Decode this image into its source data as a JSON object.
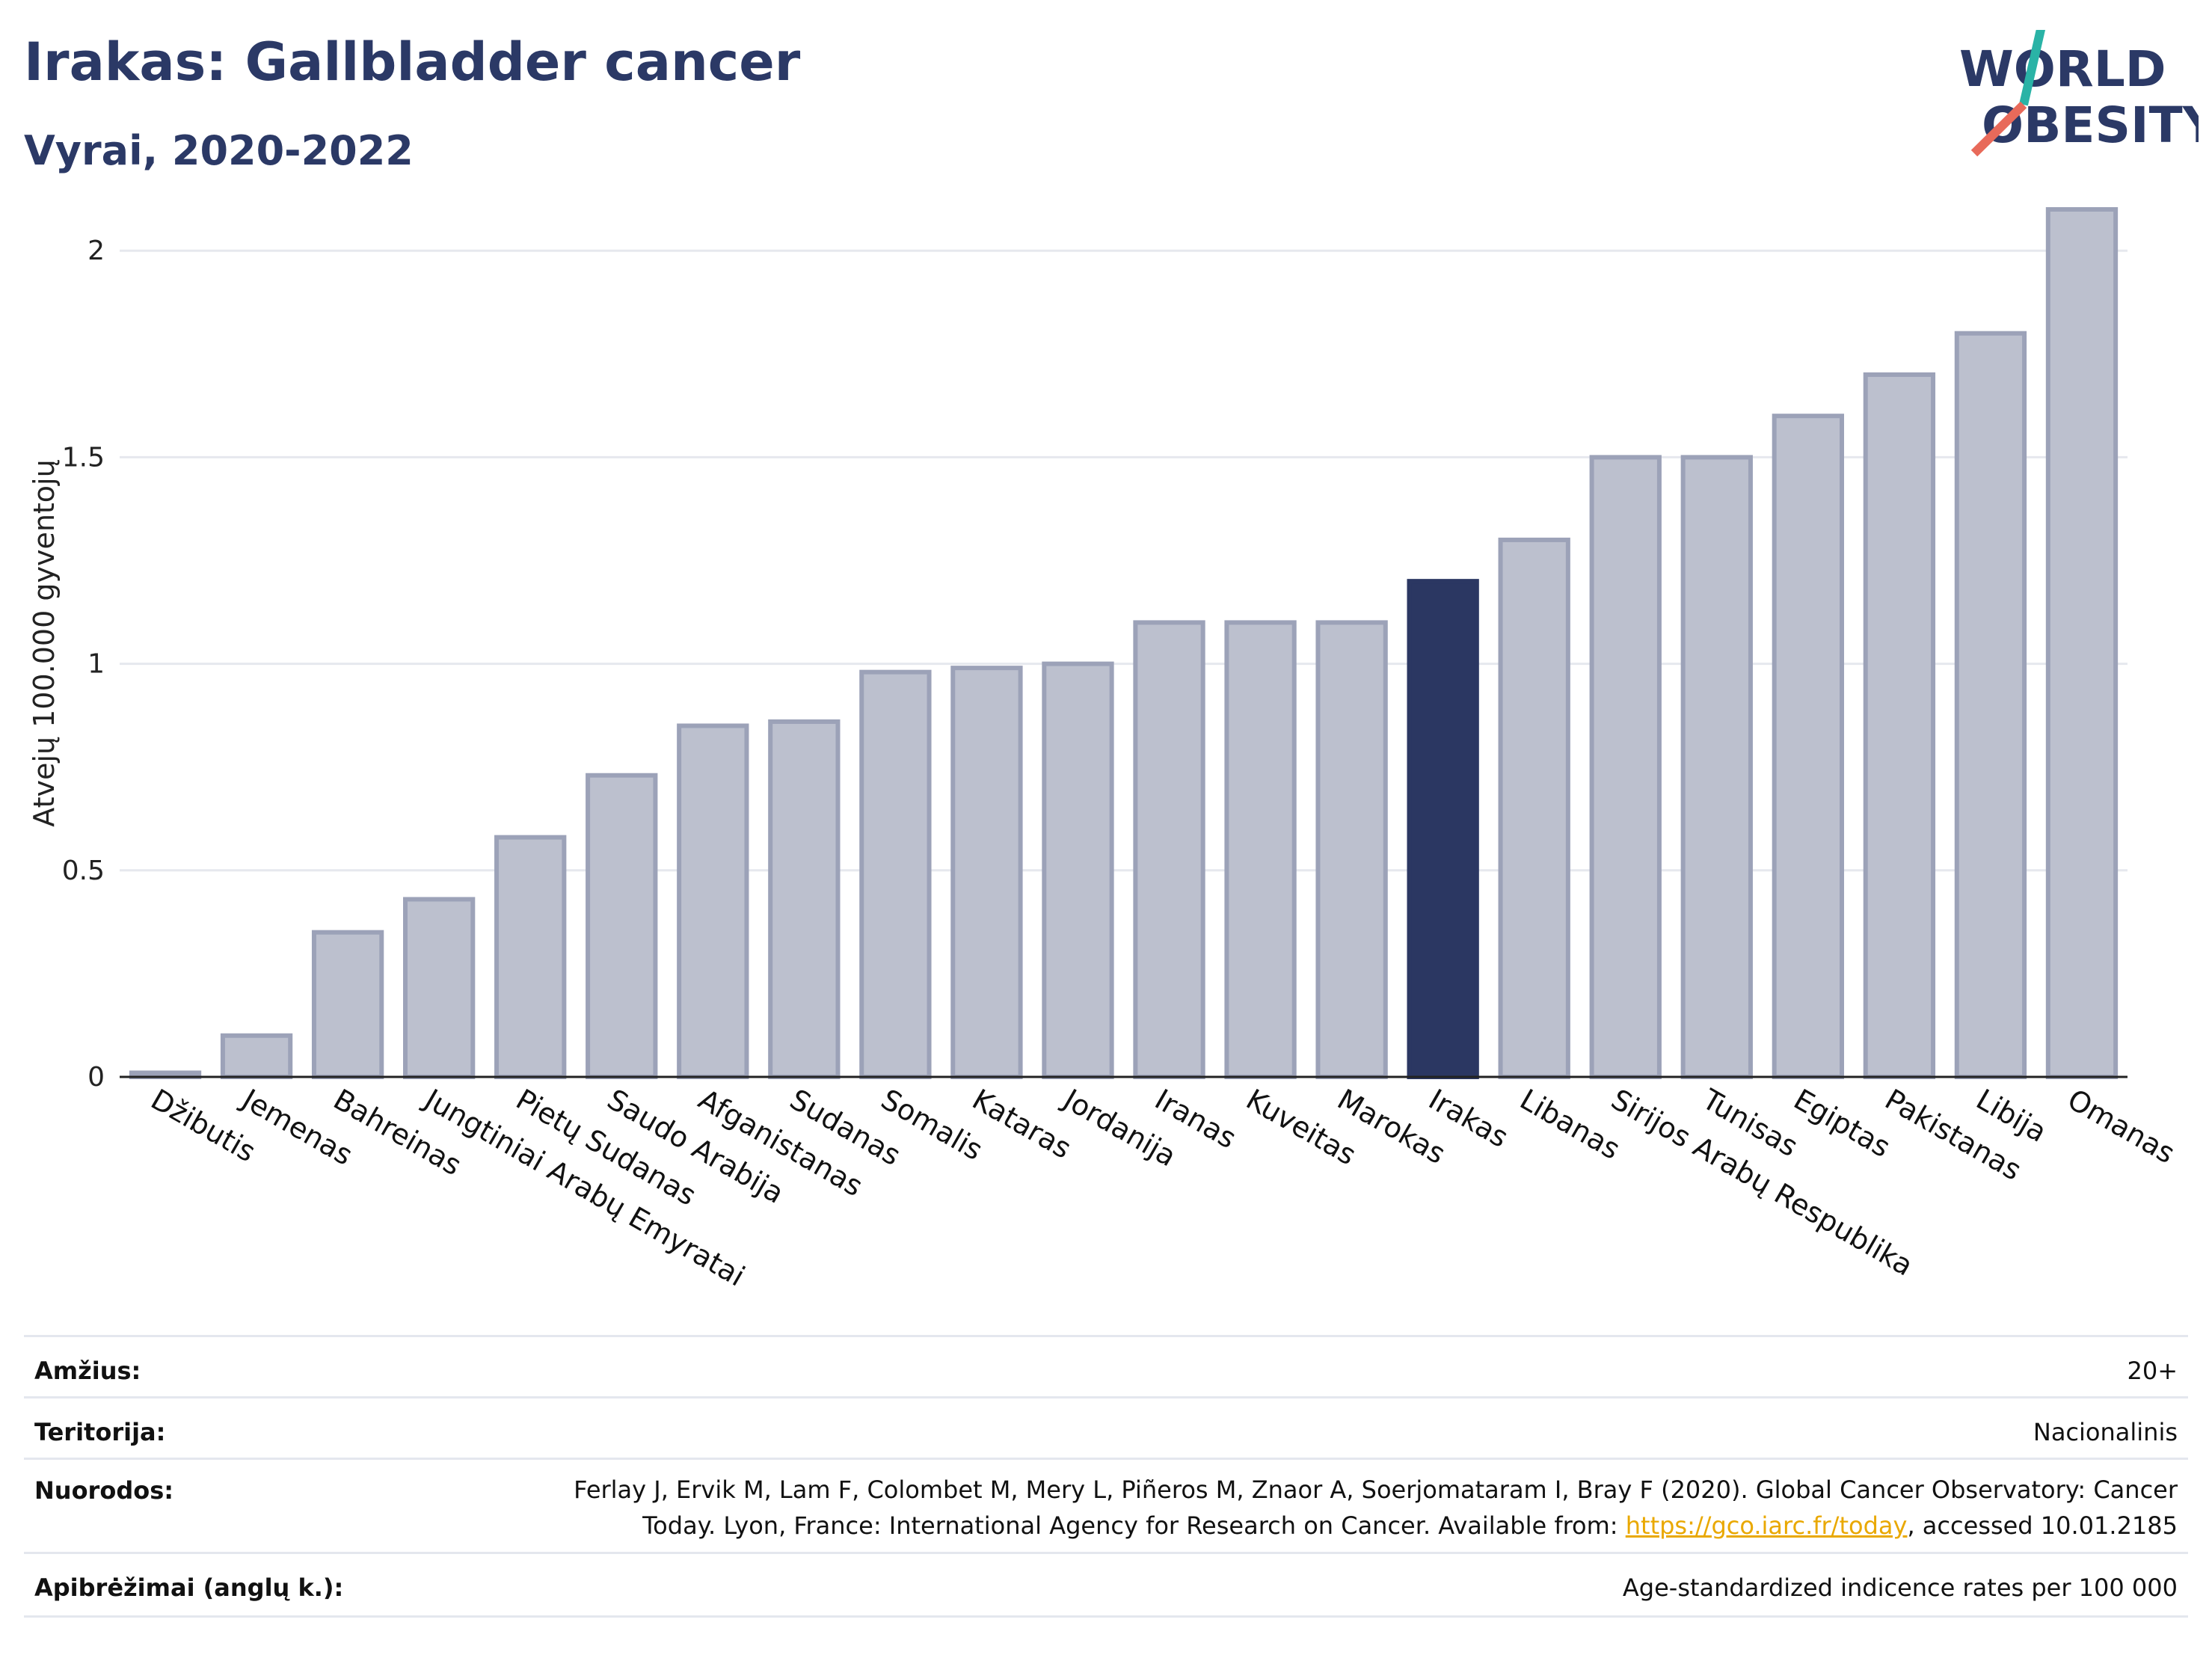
{
  "header": {
    "title": "Irakas: Gallbladder cancer",
    "subtitle": "Vyrai, 2020-2022"
  },
  "logo": {
    "line1": "WORLD",
    "line2": "OBESITY"
  },
  "chart_data": {
    "type": "bar",
    "ylabel": "Atvejų 100.000 gyventojų",
    "ylim": [
      0,
      2.1
    ],
    "yticks": [
      0,
      0.5,
      1,
      1.5,
      2
    ],
    "ytick_labels": [
      "0",
      "0.5",
      "1",
      "1.5",
      "2"
    ],
    "grid": true,
    "highlight": "Irakas",
    "colors": {
      "bar": "#bcc0ce",
      "bar_edge": "#9ca2b8",
      "highlight": "#2b3762"
    },
    "categories": [
      "Džibutis",
      "Jemenas",
      "Bahreinas",
      "Jungtiniai Arabų Emyratai",
      "Pietų Sudanas",
      "Saudo Arabija",
      "Afganistanas",
      "Sudanas",
      "Somalis",
      "Kataras",
      "Jordanija",
      "Iranas",
      "Kuveitas",
      "Marokas",
      "Irakas",
      "Libanas",
      "Sirijos Arabų Respublika",
      "Tunisas",
      "Egiptas",
      "Pakistanas",
      "Libija",
      "Omanas"
    ],
    "values": [
      0.01,
      0.1,
      0.35,
      0.43,
      0.58,
      0.73,
      0.85,
      0.86,
      0.98,
      0.99,
      1.0,
      1.1,
      1.1,
      1.1,
      1.2,
      1.3,
      1.5,
      1.5,
      1.6,
      1.7,
      1.8,
      2.1
    ]
  },
  "meta": {
    "age_label": "Amžius:",
    "age_value": "20+",
    "territory_label": "Teritorija:",
    "territory_value": "Nacionalinis",
    "refs_label": "Nuorodos:",
    "refs_line1": "Ferlay J, Ervik M, Lam F, Colombet M, Mery L, Piñeros M, Znaor A, Soerjomataram I, Bray F (2020). Global Cancer Observatory: Cancer",
    "refs_line2_pre": "Today. Lyon, France: International Agency for Research on Cancer. Available from: ",
    "refs_link": "https://gco.iarc.fr/today",
    "refs_line2_post": ", accessed 10.01.2185",
    "defs_label": "Apibrėžimai (anglų k.):",
    "defs_value": "Age-standardized indicence rates per 100 000"
  }
}
